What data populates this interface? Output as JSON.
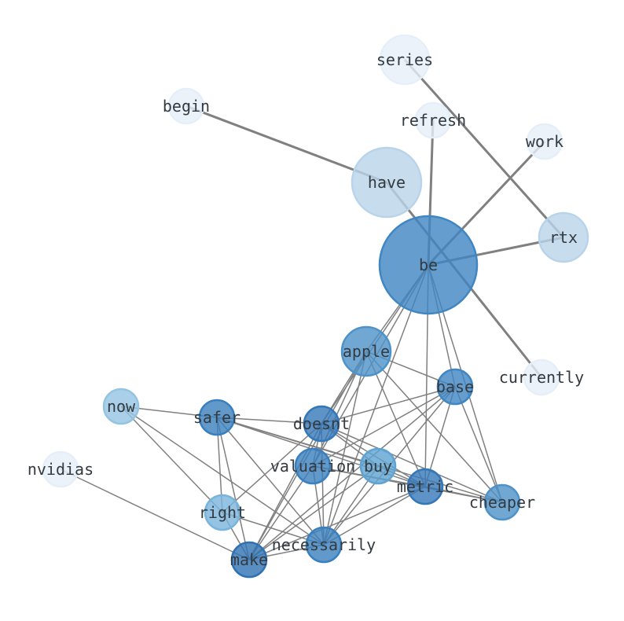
{
  "nodes": [
    {
      "id": "be",
      "label": "be",
      "color": "#3f86c2"
    },
    {
      "id": "have",
      "label": "have",
      "color": "#b9d4ea"
    },
    {
      "id": "series",
      "label": "series",
      "color": "#e6eff9"
    },
    {
      "id": "begin",
      "label": "begin",
      "color": "#e6eff9"
    },
    {
      "id": "refresh",
      "label": "refresh",
      "color": "#e6eff9"
    },
    {
      "id": "work",
      "label": "work",
      "color": "#e6eff9"
    },
    {
      "id": "rtx",
      "label": "rtx",
      "color": "#b9d4ea"
    },
    {
      "id": "currently",
      "label": "currently",
      "color": "#e6eff9"
    },
    {
      "id": "apple",
      "label": "apple",
      "color": "#4d92c8"
    },
    {
      "id": "base",
      "label": "base",
      "color": "#3f86c2"
    },
    {
      "id": "now",
      "label": "now",
      "color": "#94c4e2"
    },
    {
      "id": "safer",
      "label": "safer",
      "color": "#3a7fbe"
    },
    {
      "id": "doesnt",
      "label": "doesnt",
      "color": "#3478b8"
    },
    {
      "id": "valuation",
      "label": "valuation",
      "color": "#3a7fbe"
    },
    {
      "id": "buy",
      "label": "buy",
      "color": "#5ea3d2"
    },
    {
      "id": "metric",
      "label": "metric",
      "color": "#3478b8"
    },
    {
      "id": "cheaper",
      "label": "cheaper",
      "color": "#4d92c8"
    },
    {
      "id": "right",
      "label": "right",
      "color": "#79b4dc"
    },
    {
      "id": "necessarily",
      "label": "necessarily",
      "color": "#3a7fbe"
    },
    {
      "id": "make",
      "label": "make",
      "color": "#2f72b4"
    },
    {
      "id": "nvidias",
      "label": "nvidias",
      "color": "#e6eff9"
    }
  ],
  "strong_edges": [
    [
      "begin",
      "have"
    ],
    [
      "have",
      "currently"
    ],
    [
      "series",
      "rtx"
    ],
    [
      "be",
      "refresh"
    ],
    [
      "be",
      "work"
    ],
    [
      "be",
      "rtx"
    ]
  ],
  "edges": [
    [
      "be",
      "apple"
    ],
    [
      "be",
      "doesnt"
    ],
    [
      "be",
      "valuation"
    ],
    [
      "be",
      "base"
    ],
    [
      "be",
      "metric"
    ],
    [
      "be",
      "cheaper"
    ],
    [
      "be",
      "necessarily"
    ],
    [
      "apple",
      "doesnt"
    ],
    [
      "apple",
      "base"
    ],
    [
      "apple",
      "metric"
    ],
    [
      "apple",
      "cheaper"
    ],
    [
      "apple",
      "valuation"
    ],
    [
      "apple",
      "necessarily"
    ],
    [
      "apple",
      "make"
    ],
    [
      "base",
      "doesnt"
    ],
    [
      "base",
      "valuation"
    ],
    [
      "base",
      "metric"
    ],
    [
      "base",
      "cheaper"
    ],
    [
      "base",
      "necessarily"
    ],
    [
      "base",
      "make"
    ],
    [
      "now",
      "safer"
    ],
    [
      "now",
      "right"
    ],
    [
      "now",
      "necessarily"
    ],
    [
      "safer",
      "doesnt"
    ],
    [
      "safer",
      "buy"
    ],
    [
      "safer",
      "metric"
    ],
    [
      "safer",
      "cheaper"
    ],
    [
      "safer",
      "right"
    ],
    [
      "safer",
      "make"
    ],
    [
      "safer",
      "necessarily"
    ],
    [
      "doesnt",
      "valuation"
    ],
    [
      "doesnt",
      "buy"
    ],
    [
      "doesnt",
      "metric"
    ],
    [
      "doesnt",
      "cheaper"
    ],
    [
      "doesnt",
      "necessarily"
    ],
    [
      "doesnt",
      "make"
    ],
    [
      "doesnt",
      "right"
    ],
    [
      "valuation",
      "metric"
    ],
    [
      "valuation",
      "necessarily"
    ],
    [
      "valuation",
      "make"
    ],
    [
      "valuation",
      "cheaper"
    ],
    [
      "buy",
      "necessarily"
    ],
    [
      "buy",
      "make"
    ],
    [
      "buy",
      "metric"
    ],
    [
      "metric",
      "necessarily"
    ],
    [
      "metric",
      "make"
    ],
    [
      "metric",
      "cheaper"
    ],
    [
      "right",
      "necessarily"
    ],
    [
      "right",
      "make"
    ],
    [
      "necessarily",
      "make"
    ],
    [
      "nvidias",
      "make"
    ]
  ]
}
